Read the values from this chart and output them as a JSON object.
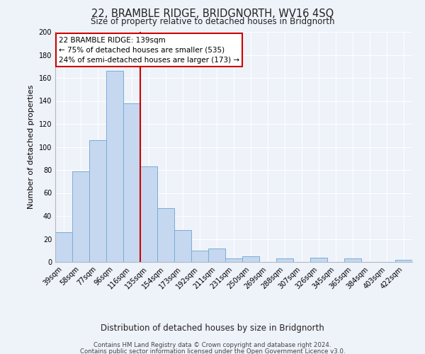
{
  "title": "22, BRAMBLE RIDGE, BRIDGNORTH, WV16 4SQ",
  "subtitle": "Size of property relative to detached houses in Bridgnorth",
  "xlabel": "Distribution of detached houses by size in Bridgnorth",
  "ylabel": "Number of detached properties",
  "bin_labels": [
    "39sqm",
    "58sqm",
    "77sqm",
    "96sqm",
    "116sqm",
    "135sqm",
    "154sqm",
    "173sqm",
    "192sqm",
    "211sqm",
    "231sqm",
    "250sqm",
    "269sqm",
    "288sqm",
    "307sqm",
    "326sqm",
    "345sqm",
    "365sqm",
    "384sqm",
    "403sqm",
    "422sqm"
  ],
  "bar_heights": [
    26,
    79,
    106,
    166,
    138,
    83,
    47,
    28,
    10,
    12,
    3,
    5,
    0,
    3,
    0,
    4,
    0,
    3,
    0,
    0,
    2
  ],
  "bar_color": "#c5d8f0",
  "bar_edge_color": "#7aadd4",
  "annotation_line1": "22 BRAMBLE RIDGE: 139sqm",
  "annotation_line2": "← 75% of detached houses are smaller (535)",
  "annotation_line3": "24% of semi-detached houses are larger (173) →",
  "box_facecolor": "#ffffff",
  "box_edgecolor": "#cc0000",
  "vline_color": "#cc0000",
  "vline_position": 5,
  "ylim": [
    0,
    200
  ],
  "yticks": [
    0,
    20,
    40,
    60,
    80,
    100,
    120,
    140,
    160,
    180,
    200
  ],
  "footer_line1": "Contains HM Land Registry data © Crown copyright and database right 2024.",
  "footer_line2": "Contains public sector information licensed under the Open Government Licence v3.0.",
  "background_color": "#eef2f9",
  "grid_color": "#ffffff"
}
